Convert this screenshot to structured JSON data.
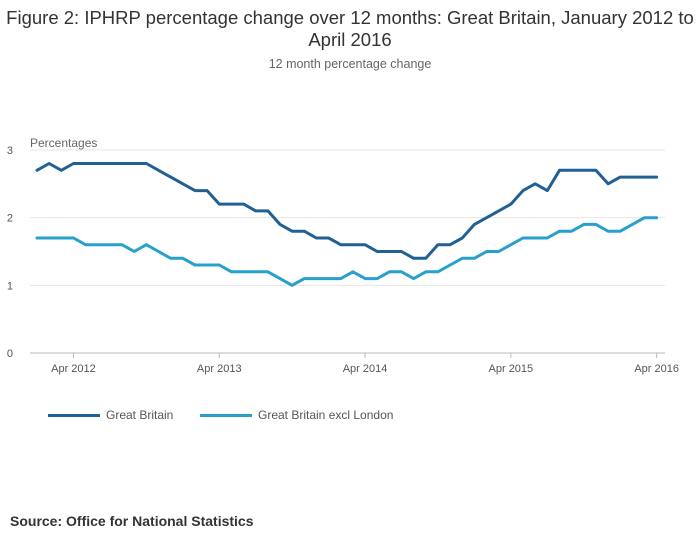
{
  "chart_data": {
    "type": "line",
    "title": "Figure 2: IPHRP percentage change over 12 months: Great Britain, January 2012 to April 2016",
    "subtitle": "12 month percentage change",
    "ylabel": "Percentages",
    "xlabel": "",
    "ylim": [
      0,
      3
    ],
    "yticks": [
      0,
      1,
      2,
      3
    ],
    "xticks": [
      "Apr 2012",
      "Apr 2013",
      "Apr 2014",
      "Apr 2015",
      "Apr 2016"
    ],
    "grid": true,
    "legend_position": "bottom-left",
    "x": [
      "Jan 2012",
      "Feb 2012",
      "Mar 2012",
      "Apr 2012",
      "May 2012",
      "Jun 2012",
      "Jul 2012",
      "Aug 2012",
      "Sep 2012",
      "Oct 2012",
      "Nov 2012",
      "Dec 2012",
      "Jan 2013",
      "Feb 2013",
      "Mar 2013",
      "Apr 2013",
      "May 2013",
      "Jun 2013",
      "Jul 2013",
      "Aug 2013",
      "Sep 2013",
      "Oct 2013",
      "Nov 2013",
      "Dec 2013",
      "Jan 2014",
      "Feb 2014",
      "Mar 2014",
      "Apr 2014",
      "May 2014",
      "Jun 2014",
      "Jul 2014",
      "Aug 2014",
      "Sep 2014",
      "Oct 2014",
      "Nov 2014",
      "Dec 2014",
      "Jan 2015",
      "Feb 2015",
      "Mar 2015",
      "Apr 2015",
      "May 2015",
      "Jun 2015",
      "Jul 2015",
      "Aug 2015",
      "Sep 2015",
      "Oct 2015",
      "Nov 2015",
      "Dec 2015",
      "Jan 2016",
      "Feb 2016",
      "Mar 2016",
      "Apr 2016"
    ],
    "series": [
      {
        "name": "Great Britain",
        "color": "#206095",
        "values": [
          2.7,
          2.8,
          2.7,
          2.8,
          2.8,
          2.8,
          2.8,
          2.8,
          2.8,
          2.8,
          2.7,
          2.6,
          2.5,
          2.4,
          2.4,
          2.2,
          2.2,
          2.2,
          2.1,
          2.1,
          1.9,
          1.8,
          1.8,
          1.7,
          1.7,
          1.6,
          1.6,
          1.6,
          1.5,
          1.5,
          1.5,
          1.4,
          1.4,
          1.6,
          1.6,
          1.7,
          1.9,
          2.0,
          2.1,
          2.2,
          2.4,
          2.5,
          2.4,
          2.7,
          2.7,
          2.7,
          2.7,
          2.5,
          2.6,
          2.6,
          2.6,
          2.6
        ]
      },
      {
        "name": "Great Britain excl London",
        "color": "#27a0cc",
        "values": [
          1.7,
          1.7,
          1.7,
          1.7,
          1.6,
          1.6,
          1.6,
          1.6,
          1.5,
          1.6,
          1.5,
          1.4,
          1.4,
          1.3,
          1.3,
          1.3,
          1.2,
          1.2,
          1.2,
          1.2,
          1.1,
          1.0,
          1.1,
          1.1,
          1.1,
          1.1,
          1.2,
          1.1,
          1.1,
          1.2,
          1.2,
          1.1,
          1.2,
          1.2,
          1.3,
          1.4,
          1.4,
          1.5,
          1.5,
          1.6,
          1.7,
          1.7,
          1.7,
          1.8,
          1.8,
          1.9,
          1.9,
          1.8,
          1.8,
          1.9,
          2.0,
          2.0
        ]
      }
    ]
  },
  "legend": {
    "items": [
      {
        "label": "Great Britain",
        "color": "#206095"
      },
      {
        "label": "Great Britain excl London",
        "color": "#27a0cc"
      }
    ]
  },
  "source": "Source: Office for National Statistics"
}
